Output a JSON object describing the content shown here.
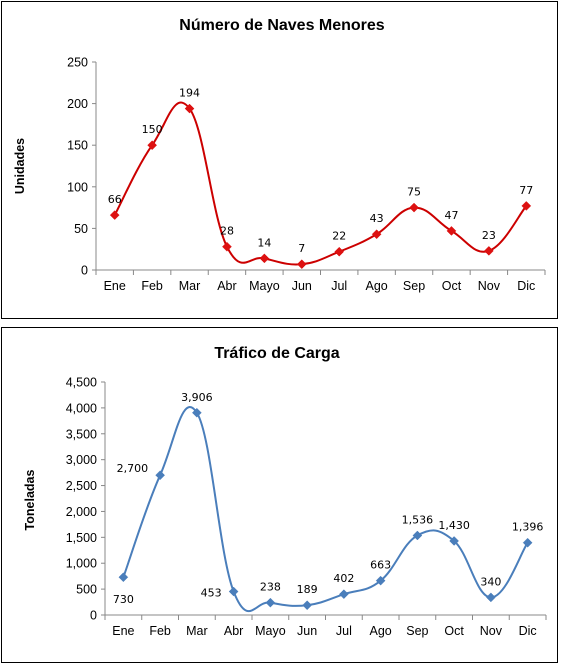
{
  "chart_data": [
    {
      "type": "line",
      "title": "Número de Naves Menores",
      "xlabel": "",
      "ylabel": "Unidades",
      "categories": [
        "Ene",
        "Feb",
        "Mar",
        "Abr",
        "Mayo",
        "Jun",
        "Jul",
        "Ago",
        "Sep",
        "Oct",
        "Nov",
        "Dic"
      ],
      "series": [
        {
          "values": [
            66,
            150,
            194,
            28,
            14,
            7,
            22,
            43,
            75,
            47,
            23,
            77
          ]
        }
      ],
      "data_labels": [
        "66",
        "150",
        "194",
        "28",
        "14",
        "7",
        "22",
        "43",
        "75",
        "47",
        "23",
        "77"
      ],
      "ylim": [
        0,
        250
      ],
      "yticks": [
        0,
        50,
        100,
        150,
        200,
        250
      ],
      "ytick_labels": [
        "0",
        "50",
        "100",
        "150",
        "200",
        "250"
      ],
      "smooth": true,
      "grid": false,
      "legend": "none",
      "colors": {
        "line": "#cc0000",
        "marker": "#dd1111"
      }
    },
    {
      "type": "line",
      "title": "Tráfico de Carga",
      "xlabel": "",
      "ylabel": "Toneladas",
      "categories": [
        "Ene",
        "Feb",
        "Mar",
        "Abr",
        "Mayo",
        "Jun",
        "Jul",
        "Ago",
        "Sep",
        "Oct",
        "Nov",
        "Dic"
      ],
      "series": [
        {
          "values": [
            730,
            2700,
            3906,
            453,
            238,
            189,
            402,
            663,
            1536,
            1430,
            340,
            1396
          ]
        }
      ],
      "data_labels": [
        "730",
        "2,700",
        "3,906",
        "453",
        "238",
        "189",
        "402",
        "663",
        "1,536",
        "1,430",
        "340",
        "1,396"
      ],
      "ylim": [
        0,
        4500
      ],
      "yticks": [
        0,
        500,
        1000,
        1500,
        2000,
        2500,
        3000,
        3500,
        4000,
        4500
      ],
      "ytick_labels": [
        "0",
        "500",
        "1,000",
        "1,500",
        "2,000",
        "2,500",
        "3,000",
        "3,500",
        "4,000",
        "4,500"
      ],
      "smooth": true,
      "grid": false,
      "legend": "none",
      "colors": {
        "line": "#4a7ebb",
        "marker": "#4a7ebb"
      }
    }
  ]
}
